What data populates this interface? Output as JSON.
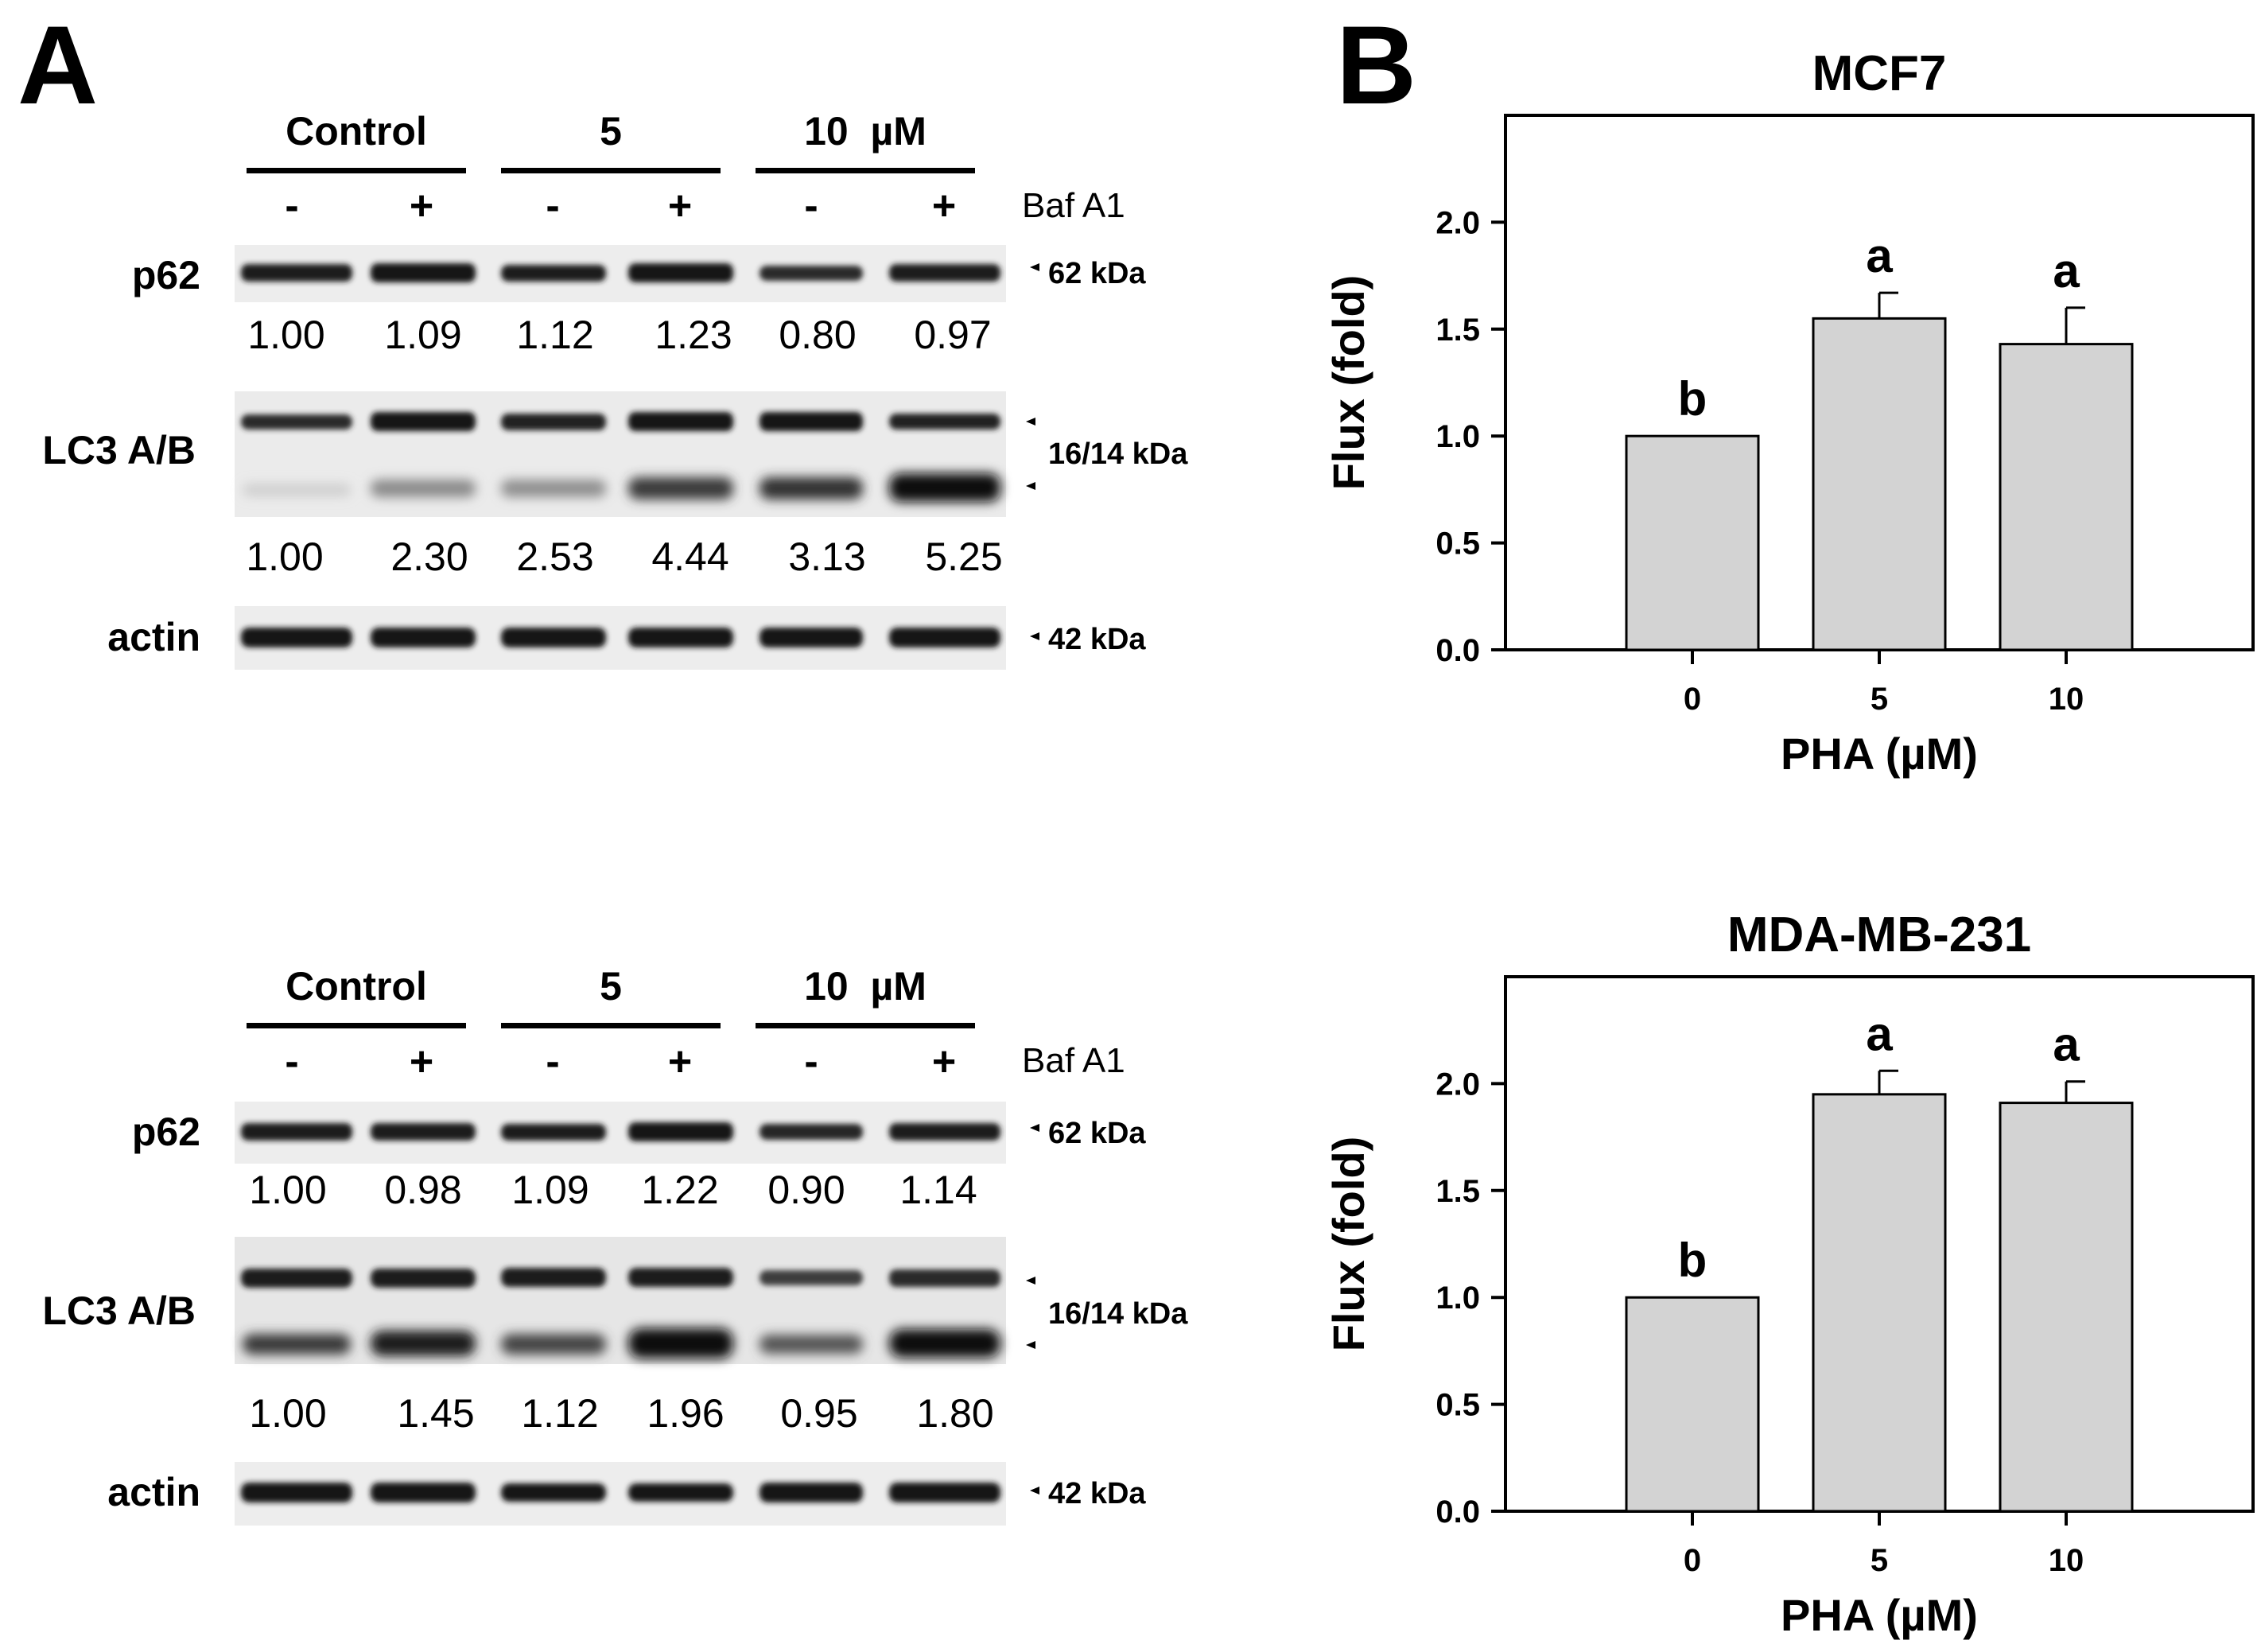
{
  "panel_a": {
    "letter": "A",
    "blots": [
      {
        "dose_groups": [
          "Control",
          "5",
          "10  µM"
        ],
        "treatment": {
          "label": "Baf A1",
          "signs": [
            "-",
            "+",
            "-",
            "+",
            "-",
            "+"
          ]
        },
        "rows": [
          {
            "label": "p62",
            "markers": [
              "62 kDa"
            ],
            "quant": [
              "1.00",
              "1.09",
              "1.12",
              "1.23",
              "0.80",
              "0.97"
            ]
          },
          {
            "label": "LC3 A/B",
            "markers": [
              "16/14 kDa"
            ],
            "quant": [
              "1.00",
              "2.30",
              "2.53",
              "4.44",
              "3.13",
              "5.25"
            ]
          },
          {
            "label": "actin",
            "markers": [
              "42 kDa"
            ],
            "quant": []
          }
        ]
      },
      {
        "dose_groups": [
          "Control",
          "5",
          "10  µM"
        ],
        "treatment": {
          "label": "Baf A1",
          "signs": [
            "-",
            "+",
            "-",
            "+",
            "-",
            "+"
          ]
        },
        "rows": [
          {
            "label": "p62",
            "markers": [
              "62 kDa"
            ],
            "quant": [
              "1.00",
              "0.98",
              "1.09",
              "1.22",
              "0.90",
              "1.14"
            ]
          },
          {
            "label": "LC3 A/B",
            "markers": [
              "16/14 kDa"
            ],
            "quant": [
              "1.00",
              "1.45",
              "1.12",
              "1.96",
              "0.95",
              "1.80"
            ]
          },
          {
            "label": "actin",
            "markers": [
              "42 kDa"
            ],
            "quant": []
          }
        ]
      }
    ]
  },
  "panel_b": {
    "letter": "B"
  },
  "chart_data": [
    {
      "type": "bar",
      "title": "MCF7",
      "xlabel": "PHA (µM)",
      "ylabel": "Flux (fold)",
      "categories": [
        "0",
        "5",
        "10"
      ],
      "values": [
        1.0,
        1.55,
        1.43
      ],
      "errors": [
        0,
        0.12,
        0.17
      ],
      "annotations": [
        "b",
        "a",
        "a"
      ],
      "ylim": [
        0,
        2.5
      ],
      "yticks": [
        "0.0",
        "0.5",
        "1.0",
        "1.5",
        "2.0"
      ],
      "bar_color": "#d3d3d3",
      "grid": false
    },
    {
      "type": "bar",
      "title": "MDA-MB-231",
      "xlabel": "PHA (µM)",
      "ylabel": "Flux (fold)",
      "categories": [
        "0",
        "5",
        "10"
      ],
      "values": [
        1.0,
        1.95,
        1.91
      ],
      "errors": [
        0,
        0.11,
        0.1
      ],
      "annotations": [
        "b",
        "a",
        "a"
      ],
      "ylim": [
        0,
        2.5
      ],
      "yticks": [
        "0.0",
        "0.5",
        "1.0",
        "1.5",
        "2.0"
      ],
      "bar_color": "#d3d3d3",
      "grid": false
    }
  ]
}
